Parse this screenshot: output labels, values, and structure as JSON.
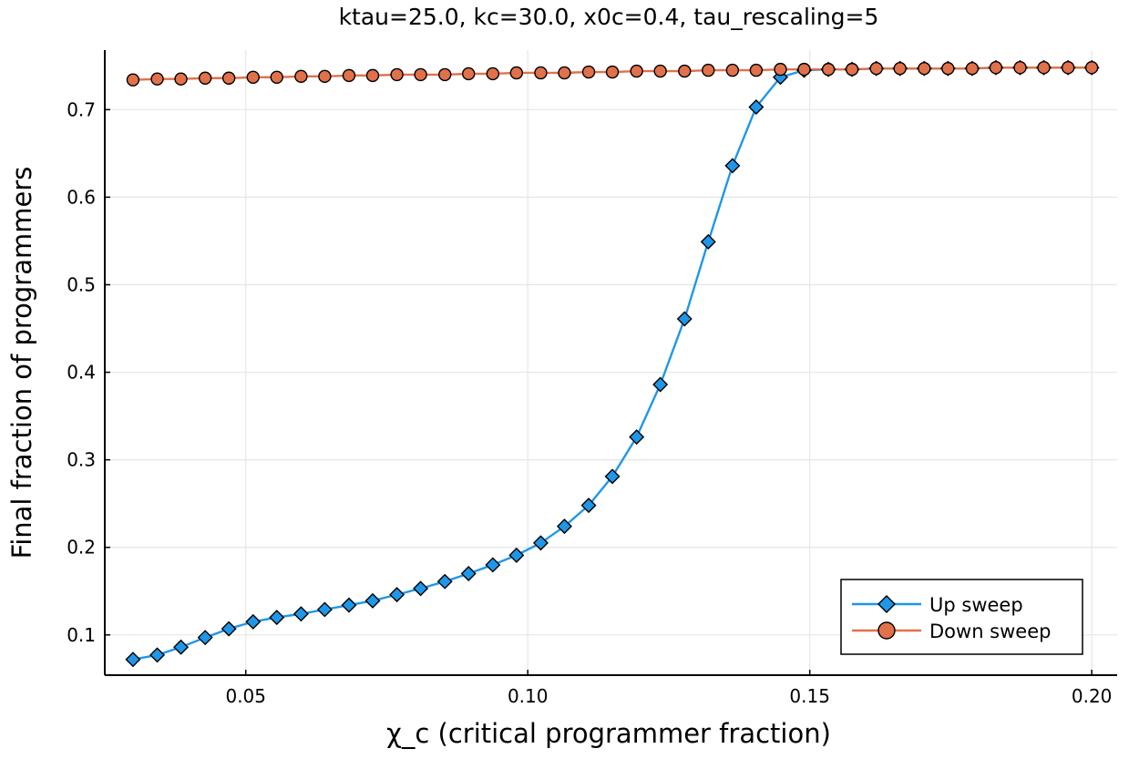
{
  "chart_data": {
    "type": "line",
    "title": "ktau=25.0, kc=30.0, x0c=0.4, tau_rescaling=5",
    "xlabel": "χ_c (critical programmer fraction)",
    "ylabel": "Final fraction of programmers",
    "xlim": [
      0.025,
      0.2045
    ],
    "ylim": [
      0.054,
      0.768
    ],
    "xticks": [
      0.05,
      0.1,
      0.15,
      0.2
    ],
    "xtick_labels": [
      "0.05",
      "0.10",
      "0.15",
      "0.20"
    ],
    "yticks": [
      0.1,
      0.2,
      0.3,
      0.4,
      0.5,
      0.6,
      0.7
    ],
    "ytick_labels": [
      "0.1",
      "0.2",
      "0.3",
      "0.4",
      "0.5",
      "0.6",
      "0.7"
    ],
    "grid": true,
    "legend_position": "bottom-right",
    "x": [
      0.03,
      0.0343,
      0.0385,
      0.0428,
      0.047,
      0.0513,
      0.0555,
      0.0598,
      0.064,
      0.0683,
      0.0725,
      0.0768,
      0.081,
      0.0853,
      0.0895,
      0.0938,
      0.098,
      0.1023,
      0.1065,
      0.1108,
      0.115,
      0.1193,
      0.1235,
      0.1278,
      0.132,
      0.1363,
      0.1405,
      0.1448,
      0.149,
      0.1533,
      0.1575,
      0.1618,
      0.166,
      0.1703,
      0.1745,
      0.1788,
      0.183,
      0.1873,
      0.1915,
      0.1958,
      0.2
    ],
    "series": [
      {
        "name": "Up sweep",
        "color": "#1f97e8",
        "marker": "diamond",
        "values": [
          0.072,
          0.077,
          0.086,
          0.097,
          0.107,
          0.115,
          0.12,
          0.124,
          0.129,
          0.134,
          0.139,
          0.146,
          0.153,
          0.161,
          0.17,
          0.18,
          0.191,
          0.205,
          0.224,
          0.248,
          0.281,
          0.326,
          0.386,
          0.461,
          0.549,
          0.636,
          0.703,
          0.737,
          0.745,
          0.746,
          0.746,
          0.747,
          0.747,
          0.747,
          0.747,
          0.747,
          0.748,
          0.748,
          0.748,
          0.748,
          0.748
        ]
      },
      {
        "name": "Down sweep",
        "color": "#e1714a",
        "marker": "circle",
        "values": [
          0.734,
          0.735,
          0.735,
          0.736,
          0.736,
          0.737,
          0.737,
          0.738,
          0.738,
          0.739,
          0.739,
          0.74,
          0.74,
          0.74,
          0.741,
          0.741,
          0.742,
          0.742,
          0.742,
          0.743,
          0.743,
          0.744,
          0.744,
          0.744,
          0.745,
          0.745,
          0.745,
          0.746,
          0.746,
          0.746,
          0.746,
          0.747,
          0.747,
          0.747,
          0.747,
          0.747,
          0.748,
          0.748,
          0.748,
          0.748,
          0.748
        ]
      }
    ]
  }
}
